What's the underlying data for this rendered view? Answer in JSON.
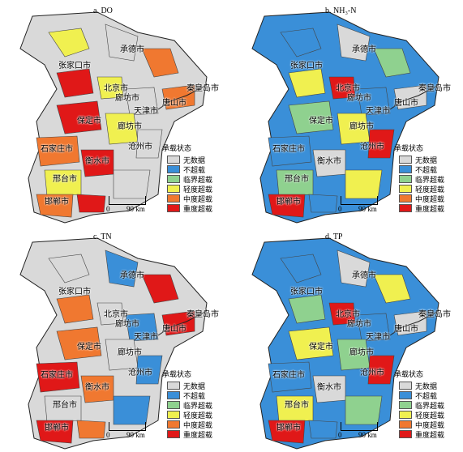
{
  "panels": [
    {
      "title": "a. DO"
    },
    {
      "title": "b. NH₃-N"
    },
    {
      "title": "c. TN"
    },
    {
      "title": "d. TP"
    }
  ],
  "cities": {
    "chengde": "承德市",
    "zhangjiakou": "张家口市",
    "beijing": "北京市",
    "langfang": "廊坊市",
    "tianjin": "天津市",
    "tangshan": "唐山市",
    "qinhuangdao": "秦皇岛市",
    "baoding": "保定市",
    "cangzhou": "沧州市",
    "shijiazhuang": "石家庄市",
    "hengshui": "衡水市",
    "xingtai": "邢台市",
    "handan": "邯郸市"
  },
  "legend": {
    "title": "承载状态",
    "items": [
      {
        "label": "无数据",
        "color": "#d9d9d9"
      },
      {
        "label": "不超载",
        "color": "#3a8fd8"
      },
      {
        "label": "临界超载",
        "color": "#8fd18f"
      },
      {
        "label": "轻度超载",
        "color": "#f0f050"
      },
      {
        "label": "中度超载",
        "color": "#f07830"
      },
      {
        "label": "重度超载",
        "color": "#e01818"
      }
    ]
  },
  "scale": {
    "zero": "0",
    "value": "90 km"
  },
  "map_fill": {
    "panel_0": [
      "#f0f050",
      "#d9d9d9",
      "#f07830",
      "#e01818"
    ],
    "panel_1": [
      "#3a8fd8",
      "#d9d9d9",
      "#8fd18f",
      "#f0f050",
      "#e01818"
    ],
    "panel_2": [
      "#d9d9d9",
      "#3a8fd8",
      "#e01818",
      "#f07830"
    ],
    "panel_3": [
      "#3a8fd8",
      "#d9d9d9",
      "#f0f050",
      "#8fd18f",
      "#e01818"
    ]
  }
}
